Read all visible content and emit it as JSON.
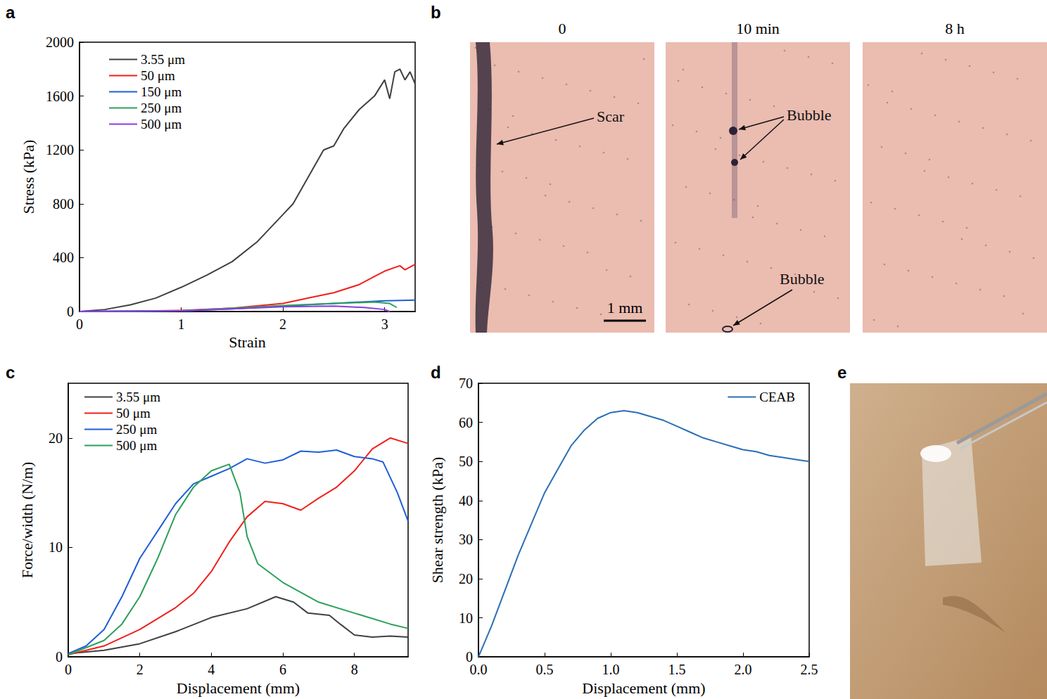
{
  "chart_data": [
    {
      "panel": "a",
      "type": "line",
      "xlabel": "Strain",
      "ylabel": "Stress (kPa)",
      "xlim": [
        0,
        3.3
      ],
      "xticks": [
        0,
        1,
        2,
        3
      ],
      "ylim": [
        0,
        2000
      ],
      "yticks": [
        0,
        400,
        800,
        1200,
        1600,
        2000
      ],
      "grid": false,
      "legend": "top-left",
      "marker": "none",
      "line_style": "solid",
      "series": [
        {
          "name": "3.55 μm",
          "color": "#404040",
          "x": [
            0,
            0.25,
            0.5,
            0.75,
            1,
            1.25,
            1.5,
            1.75,
            2,
            2.1,
            2.25,
            2.4,
            2.5,
            2.6,
            2.75,
            2.9,
            3.0,
            3.05,
            3.1,
            3.15,
            3.2,
            3.25,
            3.3
          ],
          "values": [
            0,
            15,
            50,
            100,
            180,
            270,
            370,
            520,
            720,
            800,
            1000,
            1200,
            1230,
            1360,
            1500,
            1600,
            1720,
            1580,
            1780,
            1800,
            1720,
            1780,
            1690
          ]
        },
        {
          "name": "50 μm",
          "color": "#f0201c",
          "x": [
            0,
            0.5,
            1,
            1.5,
            2,
            2.25,
            2.5,
            2.75,
            2.9,
            3.0,
            3.15,
            3.2,
            3.3
          ],
          "values": [
            0,
            3,
            8,
            25,
            60,
            100,
            140,
            200,
            260,
            300,
            340,
            310,
            350
          ]
        },
        {
          "name": "150 μm",
          "color": "#1f5fd6",
          "x": [
            0,
            1,
            1.5,
            2,
            2.5,
            3,
            3.3
          ],
          "values": [
            0,
            5,
            20,
            40,
            60,
            80,
            85
          ]
        },
        {
          "name": "250 μm",
          "color": "#2ca05a",
          "x": [
            0,
            1,
            1.5,
            2,
            2.5,
            2.9,
            3.05,
            3.12
          ],
          "values": [
            0,
            5,
            25,
            45,
            60,
            70,
            60,
            30
          ]
        },
        {
          "name": "500 μm",
          "color": "#8a3de0",
          "x": [
            0,
            1,
            1.5,
            2,
            2.5,
            2.8,
            3.0,
            3.05
          ],
          "values": [
            0,
            5,
            20,
            35,
            40,
            30,
            15,
            0
          ]
        }
      ]
    },
    {
      "panel": "c",
      "type": "line",
      "xlabel": "Displacement (mm)",
      "ylabel": "Force/width (N/m)",
      "xlim": [
        0,
        9.5
      ],
      "xticks": [
        0,
        2,
        4,
        6,
        8
      ],
      "ylim": [
        0,
        25
      ],
      "yticks": [
        0,
        10,
        20
      ],
      "grid": false,
      "legend": "top-left",
      "marker": "none",
      "line_style": "solid",
      "series": [
        {
          "name": "3.55 μm",
          "color": "#404040",
          "x": [
            0,
            1,
            2,
            3,
            4,
            5,
            5.8,
            6.3,
            6.7,
            7.3,
            7.6,
            8,
            8.5,
            9,
            9.5
          ],
          "values": [
            0.3,
            0.6,
            1.2,
            2.3,
            3.6,
            4.4,
            5.5,
            5.0,
            4.0,
            3.8,
            3.0,
            2.0,
            1.8,
            1.9,
            1.8
          ]
        },
        {
          "name": "50 μm",
          "color": "#f0201c",
          "x": [
            0,
            1,
            2,
            3,
            3.5,
            4,
            4.5,
            5,
            5.5,
            6,
            6.5,
            7,
            7.5,
            8,
            8.5,
            9,
            9.5
          ],
          "values": [
            0.2,
            1,
            2.5,
            4.5,
            5.8,
            7.8,
            10.5,
            12.8,
            14.2,
            14.0,
            13.4,
            14.5,
            15.5,
            17,
            19,
            20,
            19.5
          ]
        },
        {
          "name": "250 μm",
          "color": "#1f5fd6",
          "x": [
            0,
            0.5,
            1,
            1.5,
            2,
            2.5,
            3,
            3.5,
            4,
            4.5,
            5,
            5.5,
            6,
            6.5,
            7,
            7.5,
            8,
            8.5,
            8.8,
            9.2,
            9.5
          ],
          "values": [
            0.3,
            1,
            2.5,
            5.5,
            9,
            11.5,
            14,
            15.8,
            16.5,
            17.2,
            18.1,
            17.7,
            18,
            18.8,
            18.7,
            18.9,
            18.3,
            18.1,
            17.8,
            15,
            12.4
          ]
        },
        {
          "name": "500 μm",
          "color": "#2ca05a",
          "x": [
            0,
            1,
            1.5,
            2,
            2.5,
            3,
            3.5,
            4,
            4.5,
            4.8,
            5,
            5.3,
            6,
            7,
            8,
            9,
            9.5
          ],
          "values": [
            0.2,
            1.5,
            3,
            5.5,
            9,
            13,
            15.5,
            17,
            17.6,
            15,
            11,
            8.5,
            6.8,
            5,
            4,
            3,
            2.6
          ]
        }
      ]
    },
    {
      "panel": "d",
      "type": "line",
      "xlabel": "Displacement (mm)",
      "ylabel": "Shear strength (kPa)",
      "xlim": [
        0,
        2.5
      ],
      "xticks": [
        {
          "value": 0,
          "label": "0.0"
        },
        {
          "value": 0.5,
          "label": "0.5"
        },
        {
          "value": 1,
          "label": "1.0"
        },
        {
          "value": 1.5,
          "label": "1.5"
        },
        {
          "value": 2,
          "label": "2.0"
        },
        {
          "value": 2.5,
          "label": "2.5"
        }
      ],
      "ylim": [
        0,
        70
      ],
      "yticks": [
        0,
        10,
        20,
        30,
        40,
        50,
        60,
        70
      ],
      "grid": false,
      "legend": "top-right",
      "marker": "none",
      "line_style": "solid",
      "series": [
        {
          "name": "CEAB",
          "color": "#2a6fb5",
          "x": [
            0,
            0.1,
            0.2,
            0.3,
            0.4,
            0.5,
            0.6,
            0.7,
            0.8,
            0.9,
            1.0,
            1.1,
            1.2,
            1.3,
            1.4,
            1.5,
            1.6,
            1.7,
            1.8,
            1.9,
            2.0,
            2.1,
            2.2,
            2.3,
            2.4,
            2.5
          ],
          "values": [
            0,
            8,
            17,
            26,
            34,
            42,
            48,
            54,
            58,
            61,
            62.5,
            63,
            62.5,
            61.5,
            60.5,
            59,
            57.5,
            56,
            55,
            54,
            53,
            52.5,
            51.5,
            51,
            50.5,
            50
          ]
        }
      ]
    }
  ],
  "images": [
    {
      "panel": "b",
      "frames": [
        {
          "time": "0",
          "labels": [
            "Scar"
          ]
        },
        {
          "time": "10 min",
          "labels": [
            "Bubble",
            "Bubble"
          ]
        },
        {
          "time": "8 h",
          "labels": []
        }
      ],
      "scale_bar": "1 mm"
    },
    {
      "panel": "e"
    }
  ]
}
